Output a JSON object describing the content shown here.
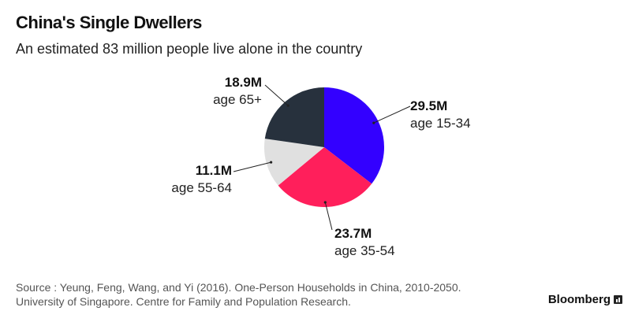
{
  "chart_data": {
    "type": "pie",
    "title": "China's Single Dwellers",
    "subtitle": "An estimated 83 million people live alone in the country",
    "slices": [
      {
        "label": "age 15-34",
        "value": 29.5,
        "display": "29.5M",
        "color": "#3300ff"
      },
      {
        "label": "age 35-54",
        "value": 23.7,
        "display": "23.7M",
        "color": "#ff1f5b"
      },
      {
        "label": "age 55-64",
        "value": 11.1,
        "display": "11.1M",
        "color": "#e0e0e0"
      },
      {
        "label": "age 65+",
        "value": 18.9,
        "display": "18.9M",
        "color": "#27313d"
      }
    ]
  },
  "source": {
    "line1": "Source : Yeung, Feng, Wang, and Yi (2016). One-Person Households in China, 2010-2050.",
    "line2": "University of Singapore. Centre for Family and Population Research."
  },
  "brand": "Bloomberg"
}
